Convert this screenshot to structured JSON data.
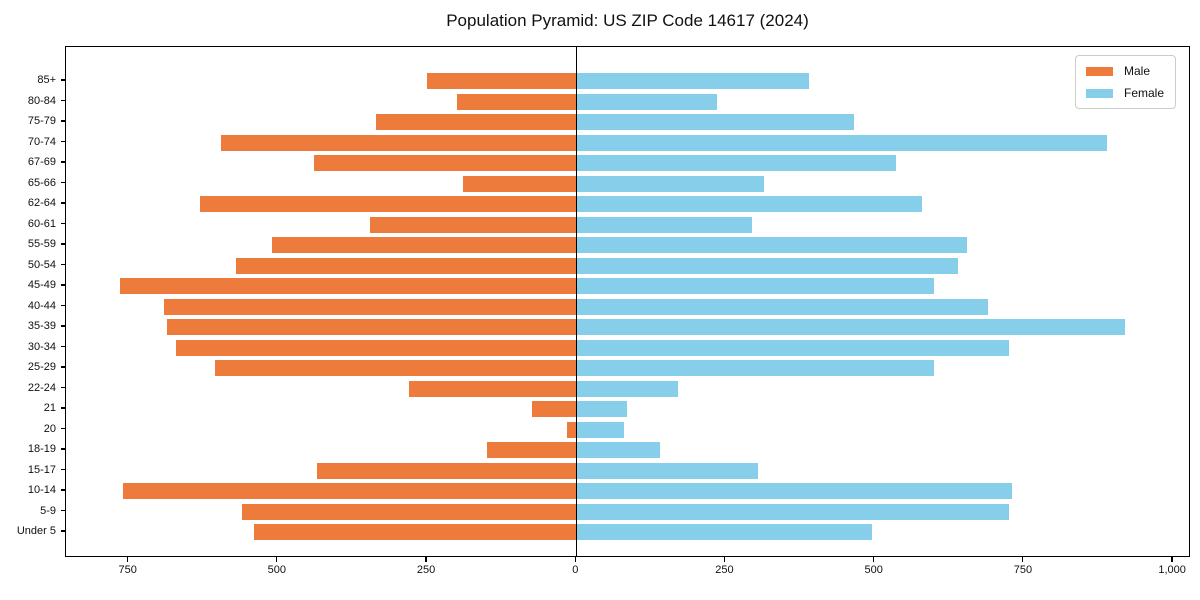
{
  "title": "Population Pyramid: US ZIP Code 14617 (2024)",
  "legend": {
    "male_label": "Male",
    "female_label": "Female"
  },
  "colors": {
    "male": "#EC7B3C",
    "female": "#87CEEB",
    "axis": "#000000",
    "legend_border": "#CCCCCC",
    "background": "#FFFFFF"
  },
  "chart_data": {
    "type": "bar",
    "subtype": "population-pyramid",
    "orientation": "horizontal",
    "title": "Population Pyramid: US ZIP Code 14617 (2024)",
    "xlabel": "",
    "ylabel": "",
    "grid": false,
    "legend_position": "upper right",
    "categories": [
      "85+",
      "80-84",
      "75-79",
      "70-74",
      "67-69",
      "65-66",
      "62-64",
      "60-61",
      "55-59",
      "50-54",
      "45-49",
      "40-44",
      "35-39",
      "30-34",
      "25-29",
      "22-24",
      "21",
      "20",
      "18-19",
      "15-17",
      "10-14",
      "5-9",
      "Under 5"
    ],
    "series": [
      {
        "name": "Male",
        "side": "left",
        "color": "#EC7B3C",
        "values": [
          250,
          200,
          335,
          595,
          440,
          190,
          630,
          345,
          510,
          570,
          765,
          690,
          685,
          670,
          605,
          280,
          75,
          15,
          150,
          435,
          760,
          560,
          540
        ]
      },
      {
        "name": "Female",
        "side": "right",
        "color": "#87CEEB",
        "values": [
          390,
          235,
          465,
          890,
          535,
          315,
          580,
          295,
          655,
          640,
          600,
          690,
          920,
          725,
          600,
          170,
          85,
          80,
          140,
          305,
          730,
          725,
          495
        ]
      }
    ],
    "x_ticks": [
      {
        "value": -750,
        "label": "750"
      },
      {
        "value": -500,
        "label": "500"
      },
      {
        "value": -250,
        "label": "250"
      },
      {
        "value": 0,
        "label": "0"
      },
      {
        "value": 250,
        "label": "250"
      },
      {
        "value": 500,
        "label": "500"
      },
      {
        "value": 750,
        "label": "750"
      },
      {
        "value": 1000,
        "label": "1,000"
      }
    ],
    "xlim": [
      -855,
      1030
    ]
  }
}
